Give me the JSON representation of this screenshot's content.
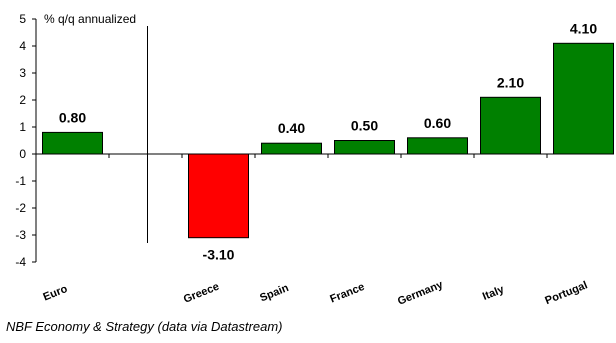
{
  "chart_data": {
    "type": "bar",
    "unit_label": "% q/q annualized",
    "categories": [
      "Euro",
      "Greece",
      "Spain",
      "France",
      "Germany",
      "Italy",
      "Portugal"
    ],
    "values": [
      0.8,
      -3.1,
      0.4,
      0.5,
      0.6,
      2.1,
      4.1
    ],
    "data_labels": [
      "0.80",
      "-3.10",
      "0.40",
      "0.50",
      "0.60",
      "2.10",
      "4.10"
    ],
    "ylim": [
      -4,
      5
    ],
    "yticks": [
      -4,
      -3,
      -2,
      -1,
      0,
      1,
      2,
      3,
      4,
      5
    ],
    "colors": {
      "positive": "#008000",
      "negative": "#ff0000",
      "outline": "#000000"
    },
    "grid": false,
    "separator_after": "Euro"
  },
  "source": "NBF Economy & Strategy (data via Datastream)"
}
